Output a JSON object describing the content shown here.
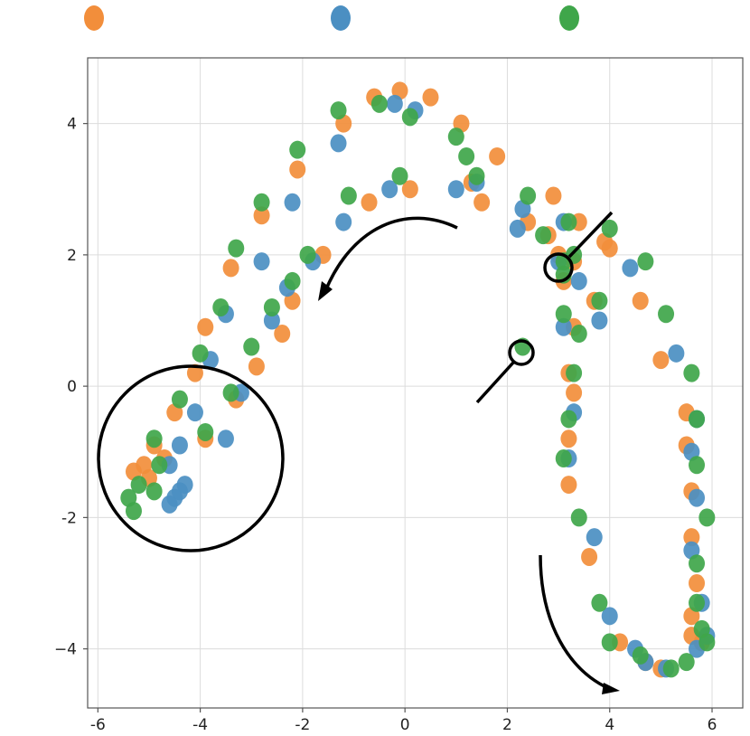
{
  "chart_data": {
    "type": "scatter",
    "xlim": [
      -6.2,
      6.6
    ],
    "ylim": [
      -4.9,
      5.0
    ],
    "grid": true,
    "legend": "top (markers only, no text)",
    "xticks": [
      {
        "value": -6,
        "label": "-6"
      },
      {
        "value": -4,
        "label": "-4"
      },
      {
        "value": -2,
        "label": "-2"
      },
      {
        "value": 0,
        "label": "0"
      },
      {
        "value": 2,
        "label": "2"
      },
      {
        "value": 4,
        "label": "4"
      },
      {
        "value": 6,
        "label": "6"
      }
    ],
    "yticks": [
      {
        "value": 4,
        "label": "4"
      },
      {
        "value": 2,
        "label": "2"
      },
      {
        "value": 0,
        "label": "0"
      },
      {
        "value": -2,
        "label": "-2"
      },
      {
        "value": -4,
        "label": "−4"
      }
    ],
    "series": [
      {
        "color": "#f28e3b",
        "points": [
          [
            -5.3,
            -1.3
          ],
          [
            -5.1,
            -1.2
          ],
          [
            -4.9,
            -0.9
          ],
          [
            -5.0,
            -1.4
          ],
          [
            -4.7,
            -1.1
          ],
          [
            -4.5,
            -0.4
          ],
          [
            -4.1,
            0.2
          ],
          [
            -3.9,
            -0.8
          ],
          [
            -3.3,
            -0.2
          ],
          [
            -3.9,
            0.9
          ],
          [
            -3.4,
            1.8
          ],
          [
            -2.9,
            0.3
          ],
          [
            -2.4,
            0.8
          ],
          [
            -2.8,
            2.6
          ],
          [
            -2.1,
            3.3
          ],
          [
            -1.6,
            2.0
          ],
          [
            -2.2,
            1.3
          ],
          [
            -1.2,
            4.0
          ],
          [
            -0.7,
            2.8
          ],
          [
            -0.6,
            4.4
          ],
          [
            -0.1,
            4.5
          ],
          [
            0.1,
            3.0
          ],
          [
            0.5,
            4.4
          ],
          [
            1.1,
            4.0
          ],
          [
            1.3,
            3.1
          ],
          [
            1.5,
            2.8
          ],
          [
            1.8,
            3.5
          ],
          [
            2.4,
            2.5
          ],
          [
            2.8,
            2.3
          ],
          [
            2.9,
            2.9
          ],
          [
            3.0,
            2.0
          ],
          [
            3.1,
            1.6
          ],
          [
            3.3,
            1.9
          ],
          [
            3.4,
            2.5
          ],
          [
            3.9,
            2.2
          ],
          [
            4.0,
            2.1
          ],
          [
            3.7,
            1.3
          ],
          [
            4.6,
            1.3
          ],
          [
            5.0,
            0.4
          ],
          [
            3.3,
            0.9
          ],
          [
            3.2,
            0.2
          ],
          [
            3.3,
            -0.1
          ],
          [
            3.2,
            -0.8
          ],
          [
            5.5,
            -0.4
          ],
          [
            5.5,
            -0.9
          ],
          [
            3.2,
            -1.5
          ],
          [
            5.6,
            -1.6
          ],
          [
            5.6,
            -2.3
          ],
          [
            3.6,
            -2.6
          ],
          [
            5.7,
            -3.0
          ],
          [
            5.6,
            -3.5
          ],
          [
            5.6,
            -3.8
          ],
          [
            5.8,
            -3.9
          ],
          [
            4.7,
            -4.2
          ],
          [
            5.0,
            -4.3
          ],
          [
            4.2,
            -3.9
          ]
        ]
      },
      {
        "color": "#4b8fc2",
        "points": [
          [
            -4.6,
            -1.8
          ],
          [
            -4.5,
            -1.7
          ],
          [
            -4.4,
            -1.6
          ],
          [
            -4.3,
            -1.5
          ],
          [
            -4.6,
            -1.2
          ],
          [
            -4.4,
            -0.9
          ],
          [
            -4.1,
            -0.4
          ],
          [
            -3.8,
            0.4
          ],
          [
            -3.5,
            -0.8
          ],
          [
            -3.2,
            -0.1
          ],
          [
            -3.5,
            1.1
          ],
          [
            -2.8,
            1.9
          ],
          [
            -2.6,
            1.0
          ],
          [
            -2.3,
            1.5
          ],
          [
            -2.2,
            2.8
          ],
          [
            -1.8,
            1.9
          ],
          [
            -1.3,
            3.7
          ],
          [
            -1.2,
            2.5
          ],
          [
            -0.3,
            3.0
          ],
          [
            -0.2,
            4.3
          ],
          [
            0.2,
            4.2
          ],
          [
            1.0,
            3.0
          ],
          [
            1.4,
            3.1
          ],
          [
            2.3,
            2.7
          ],
          [
            2.2,
            2.4
          ],
          [
            3.1,
            2.5
          ],
          [
            3.0,
            1.9
          ],
          [
            3.4,
            1.6
          ],
          [
            4.4,
            1.8
          ],
          [
            3.8,
            1.0
          ],
          [
            3.1,
            0.9
          ],
          [
            5.3,
            0.5
          ],
          [
            3.3,
            -0.4
          ],
          [
            3.2,
            -1.1
          ],
          [
            5.7,
            -0.5
          ],
          [
            5.6,
            -1.0
          ],
          [
            5.7,
            -1.7
          ],
          [
            3.7,
            -2.3
          ],
          [
            5.6,
            -2.5
          ],
          [
            5.8,
            -3.3
          ],
          [
            5.9,
            -3.8
          ],
          [
            4.0,
            -3.5
          ],
          [
            4.5,
            -4.0
          ],
          [
            4.7,
            -4.2
          ],
          [
            5.1,
            -4.3
          ],
          [
            5.7,
            -4.0
          ]
        ]
      },
      {
        "color": "#3fa64a",
        "points": [
          [
            -5.3,
            -1.9
          ],
          [
            -5.4,
            -1.7
          ],
          [
            -5.2,
            -1.5
          ],
          [
            -4.9,
            -1.6
          ],
          [
            -4.8,
            -1.2
          ],
          [
            -4.9,
            -0.8
          ],
          [
            -4.4,
            -0.2
          ],
          [
            -4.0,
            0.5
          ],
          [
            -3.9,
            -0.7
          ],
          [
            -3.4,
            -0.1
          ],
          [
            -3.6,
            1.2
          ],
          [
            -3.3,
            2.1
          ],
          [
            -3.0,
            0.6
          ],
          [
            -2.6,
            1.2
          ],
          [
            -2.8,
            2.8
          ],
          [
            -2.1,
            3.6
          ],
          [
            -2.2,
            1.6
          ],
          [
            -1.9,
            2.0
          ],
          [
            -1.3,
            4.2
          ],
          [
            -1.1,
            2.9
          ],
          [
            -0.5,
            4.3
          ],
          [
            0.1,
            4.1
          ],
          [
            -0.1,
            3.2
          ],
          [
            1.0,
            3.8
          ],
          [
            1.2,
            3.5
          ],
          [
            1.4,
            3.2
          ],
          [
            2.4,
            2.9
          ],
          [
            2.7,
            2.3
          ],
          [
            3.2,
            2.5
          ],
          [
            3.1,
            1.7
          ],
          [
            3.3,
            2.0
          ],
          [
            4.0,
            2.4
          ],
          [
            4.7,
            1.9
          ],
          [
            5.1,
            1.1
          ],
          [
            3.1,
            1.1
          ],
          [
            3.4,
            0.8
          ],
          [
            3.8,
            1.3
          ],
          [
            3.3,
            0.2
          ],
          [
            5.6,
            0.2
          ],
          [
            3.2,
            -0.5
          ],
          [
            3.1,
            -1.1
          ],
          [
            5.7,
            -0.5
          ],
          [
            5.7,
            -1.2
          ],
          [
            3.4,
            -2.0
          ],
          [
            5.9,
            -2.0
          ],
          [
            5.7,
            -2.7
          ],
          [
            5.7,
            -3.3
          ],
          [
            3.8,
            -3.3
          ],
          [
            5.8,
            -3.7
          ],
          [
            4.0,
            -3.9
          ],
          [
            4.6,
            -4.1
          ],
          [
            5.2,
            -4.3
          ],
          [
            5.5,
            -4.2
          ],
          [
            5.9,
            -3.9
          ],
          [
            2.3,
            0.6
          ],
          [
            3.1,
            1.9
          ]
        ]
      }
    ]
  }
}
